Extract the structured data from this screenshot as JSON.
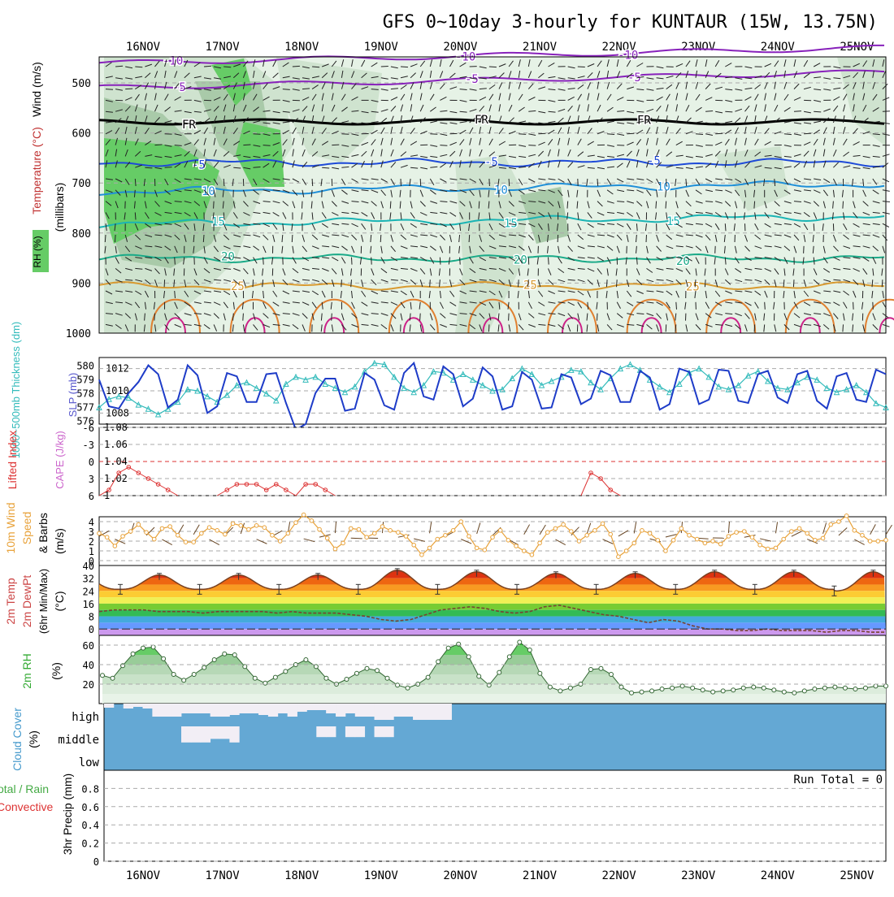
{
  "title": "GFS 0~10day 3-hourly for KUNTAUR (15W, 13.75N)",
  "dates": [
    "16NOV",
    "17NOV",
    "18NOV",
    "19NOV",
    "20NOV",
    "21NOV",
    "22NOV",
    "23NOV",
    "24NOV",
    "25NOV"
  ],
  "colors": {
    "rh_green": "#66cc66",
    "slp": "#1e3cc8",
    "thickness": "#33bbbb",
    "li": "#dd3333",
    "wind_speed": "#e8a23a",
    "temp_line": "#7a4020",
    "rh2m": "#55bb55",
    "cloud": "#64a8d4",
    "cloud_gap": "#f2eef5"
  },
  "panels": {
    "upper": {
      "ylabel_wind": "Wind (m/s)",
      "ylabel_temp": "Temperature (°C)",
      "ylabel_rh": "RH (%)",
      "ylabel_units": "(millibars)",
      "pressure_ticks": [
        "500",
        "600",
        "700",
        "800",
        "900",
        "1000"
      ],
      "isotherms": [
        {
          "label": "-10",
          "color": "#8822bb"
        },
        {
          "label": "-5",
          "color": "#8822bb"
        },
        {
          "label": "FR",
          "color": "#000000"
        },
        {
          "label": "-5",
          "color": "#1e4ad8"
        },
        {
          "label": "10",
          "color": "#1f8fd8"
        },
        {
          "label": "15",
          "color": "#1ab4b4"
        },
        {
          "label": "20",
          "color": "#1aaa88"
        },
        {
          "label": "25",
          "color": "#d89a30"
        }
      ]
    },
    "slp": {
      "ylabel_thickness": "1000~500mb Thickness (dm)",
      "ylabel_slp": "SLP (mb)",
      "ticks_thickness": [
        "580",
        "579",
        "578",
        "577",
        "576"
      ],
      "ticks_slp": [
        "1012",
        "1010",
        "1008"
      ]
    },
    "li": {
      "ylabel_li": "Lifted Index",
      "ylabel_cape": "CAPE (J/kg)",
      "ticks_li": [
        "-6",
        "-3",
        "0",
        "3",
        "6"
      ],
      "ticks_cape": [
        "1.08",
        "1.06",
        "1.04",
        "1.02",
        "1"
      ]
    },
    "wind10": {
      "ylabel_1": "10m Wind",
      "ylabel_2": "Speed",
      "ylabel_3": "& Barbs",
      "ylabel_units": "(m/s)",
      "ticks": [
        "4",
        "3",
        "2",
        "1",
        "0"
      ]
    },
    "temp2m": {
      "ylabel_1": "2m Temp",
      "ylabel_2": "2m DewPt",
      "ylabel_3": "(6hr Min/Max)",
      "ylabel_units": "(°C)",
      "ticks": [
        "40",
        "32",
        "24",
        "16",
        "8",
        "0"
      ]
    },
    "rh2m": {
      "ylabel": "2m RH",
      "ylabel_units": "(%)",
      "ticks": [
        "60",
        "40",
        "20"
      ]
    },
    "cloud": {
      "ylabel": "Cloud Cover",
      "ylabel_units": "(%)",
      "levels": [
        "high",
        "middle",
        "low"
      ]
    },
    "precip": {
      "ylabel_1": "Total / Rain",
      "ylabel_2": "Convective",
      "ylabel_3": "3hr Precip (mm)",
      "ticks": [
        "0.8",
        "0.6",
        "0.4",
        "0.2",
        "0"
      ],
      "run_total": "Run Total = 0"
    }
  },
  "chart_data": [
    {
      "type": "line",
      "title": "SLP (mb)",
      "x_unit": "3-hourly steps from 15NOV 12Z",
      "series": [
        {
          "name": "SLP (mb)",
          "values": [
            1011,
            1008.6,
            1008.4,
            1009.8,
            1010.8,
            1012.3,
            1011.5,
            1008.5,
            1009.2,
            1012.3,
            1011.4,
            1008.0,
            1008.6,
            1011.6,
            1011.3,
            1009.0,
            1009.0,
            1011.5,
            1011.6,
            1008.9,
            1006.5,
            1007.0,
            1009.8,
            1011.1,
            1011.1,
            1008.2,
            1008.4,
            1011.6,
            1011.0,
            1008.7,
            1008.3,
            1011.6,
            1012.5,
            1009.5,
            1009.2,
            1012.2,
            1011.5,
            1008.6,
            1009.3,
            1012.1,
            1011.3,
            1008.3,
            1008.6,
            1011.7,
            1011.0,
            1008.4,
            1008.5,
            1011.5,
            1011.2,
            1008.8,
            1009.3,
            1011.8,
            1011.4,
            1009.0,
            1009.0,
            1011.8,
            1011.2,
            1008.3,
            1008.8,
            1012.0,
            1011.7,
            1008.8,
            1009.2,
            1011.9,
            1011.8,
            1009.1,
            1008.9,
            1011.5,
            1011.8,
            1009.4,
            1008.9,
            1011.5,
            1011.8,
            1009.1,
            1008.4,
            1011.3,
            1011.6,
            1009.2,
            1009.0,
            1011.9,
            1011.5
          ]
        },
        {
          "name": "1000~500mb Thickness (dm)",
          "values": [
            577.0,
            577.6,
            577.8,
            577.7,
            577.2,
            576.9,
            576.5,
            576.9,
            577.4,
            578.3,
            578.2,
            577.8,
            577.4,
            577.9,
            578.6,
            578.8,
            578.4,
            578.0,
            577.5,
            578.7,
            579.2,
            579.0,
            579.2,
            578.7,
            578.4,
            578.1,
            578.5,
            579.6,
            580.2,
            580.1,
            579.2,
            578.4,
            578.1,
            578.6,
            579.6,
            579.5,
            579.0,
            579.4,
            579.0,
            578.6,
            578.2,
            578.3,
            579.1,
            579.8,
            579.4,
            578.6,
            578.9,
            579.2,
            579.7,
            579.6,
            578.8,
            578.3,
            579.1,
            579.8,
            580.1,
            579.7,
            579.0,
            578.5,
            578.1,
            578.7,
            579.5,
            579.8,
            579.2,
            578.5,
            578.3,
            578.6,
            579.3,
            579.6,
            578.9,
            578.4,
            578.3,
            578.8,
            579.2,
            579.0,
            578.4,
            578.1,
            578.3,
            578.6,
            578.1,
            577.3,
            577.0
          ]
        }
      ],
      "ylim_slp": [
        1007,
        1013
      ],
      "ylim_thickness": [
        575.8,
        580.6
      ]
    },
    {
      "type": "line",
      "title": "Lifted Index",
      "series": [
        {
          "name": "Lifted Index",
          "values": [
            6,
            5,
            2,
            1,
            2,
            3,
            4,
            5,
            6,
            6,
            6,
            6,
            6,
            5,
            4,
            4,
            4,
            5,
            4,
            5,
            6,
            4,
            4,
            5,
            6,
            6,
            6,
            6,
            6,
            6,
            6,
            6,
            6,
            6,
            6,
            6,
            6,
            6,
            6,
            6,
            6,
            6,
            6,
            6,
            6,
            6,
            6,
            6,
            6,
            6,
            2,
            3,
            5,
            6,
            6,
            6,
            6,
            6,
            6,
            6
          ]
        }
      ],
      "ylim": [
        -6,
        6
      ]
    },
    {
      "type": "line",
      "title": "10m Wind Speed (m/s)",
      "series": [
        {
          "name": "Speed",
          "values": [
            2.8,
            2.4,
            1.5,
            2.5,
            3.0,
            3.7,
            2.9,
            2.2,
            3.3,
            3.5,
            2.6,
            1.9,
            1.9,
            2.8,
            3.4,
            3.1,
            2.7,
            3.8,
            3.6,
            3.2,
            3.6,
            3.4,
            2.6,
            2.0,
            2.8,
            3.9,
            4.7,
            4.1,
            3.2,
            2.3,
            1.2,
            1.8,
            3.3,
            3.2,
            2.4,
            2.8,
            3.5,
            3.1,
            2.9,
            2.5,
            1.6,
            0.6,
            1.3,
            2.2,
            2.6,
            3.1,
            4.0,
            2.5,
            1.3,
            1.1,
            2.4,
            3.1,
            2.1,
            1.5,
            1.0,
            0.6,
            1.8,
            2.9,
            3.3,
            3.7,
            3.0,
            2.0,
            2.6,
            3.1,
            3.8,
            2.7,
            0.4,
            1.0,
            1.8,
            3.1,
            2.8,
            2.1,
            1.0,
            2.1,
            3.3,
            2.6,
            2.2,
            1.8,
            2.0,
            1.7,
            2.5,
            2.9,
            3.0,
            2.4,
            1.6,
            1.2,
            1.3,
            2.2,
            3.0,
            3.3,
            2.8,
            2.1,
            2.3,
            3.7,
            4.0,
            4.6,
            3.1,
            2.6,
            2.0,
            2.0,
            2.1
          ]
        }
      ],
      "ylim": [
        0,
        5
      ]
    },
    {
      "type": "area",
      "title": "2m Temp (°C)",
      "series": [
        {
          "name": "2m Temp",
          "daily_max": [
            34,
            34,
            34,
            37,
            36,
            35,
            35,
            36,
            36,
            36
          ],
          "daily_min": [
            25,
            25,
            25,
            25,
            25,
            25,
            25,
            25,
            25,
            24
          ]
        },
        {
          "name": "2m DewPt",
          "values": [
            11,
            12,
            12,
            12,
            11,
            11,
            11,
            10,
            11,
            11,
            11,
            11,
            10,
            11,
            10,
            10,
            10,
            9,
            8,
            6,
            5,
            6,
            9,
            12,
            13,
            14,
            13,
            11,
            10,
            11,
            14,
            15,
            13,
            11,
            9,
            8,
            6,
            4,
            6,
            5,
            2,
            0,
            0,
            -1,
            -1,
            0,
            -1,
            -1,
            -1,
            -2,
            -1,
            -1,
            -2,
            -2
          ]
        }
      ],
      "ylim": [
        -4,
        40
      ]
    },
    {
      "type": "area",
      "title": "2m RH (%)",
      "series": [
        {
          "name": "2m RH",
          "values": [
            29,
            26,
            39,
            51,
            57,
            58,
            46,
            30,
            24,
            30,
            37,
            45,
            51,
            50,
            38,
            26,
            21,
            27,
            33,
            40,
            45,
            38,
            26,
            20,
            25,
            31,
            36,
            34,
            26,
            19,
            16,
            20,
            27,
            43,
            57,
            61,
            48,
            28,
            19,
            32,
            48,
            63,
            55,
            31,
            17,
            13,
            16,
            20,
            35,
            36,
            30,
            17,
            11,
            12,
            13,
            15,
            16,
            18,
            16,
            14,
            12,
            13,
            14,
            16,
            17,
            16,
            14,
            12,
            11,
            13,
            15,
            16,
            17,
            16,
            15,
            16,
            18,
            18
          ]
        }
      ],
      "ylim": [
        0,
        70
      ]
    },
    {
      "type": "bar",
      "title": "Cloud Cover (%)",
      "series": [
        {
          "name": "high",
          "values": [
            75,
            100,
            70,
            80,
            70,
            20,
            20,
            20,
            40,
            40,
            40,
            20,
            20,
            30,
            40,
            40,
            30,
            20,
            40,
            20,
            50,
            60,
            60,
            40,
            20,
            40,
            20,
            20,
            0,
            0,
            20,
            20,
            0,
            0,
            0,
            0,
            100,
            100,
            100,
            100,
            100,
            100,
            100,
            100,
            100,
            100,
            100,
            100,
            100,
            100,
            100,
            100,
            100,
            100,
            100,
            100,
            100,
            100,
            100,
            100,
            100,
            100,
            100,
            100,
            100,
            100,
            100,
            100,
            100,
            100,
            100,
            100,
            100,
            100,
            100,
            100,
            100,
            100,
            100,
            100,
            100
          ]
        },
        {
          "name": "middle",
          "values": [
            100,
            100,
            100,
            100,
            100,
            100,
            100,
            100,
            10,
            10,
            10,
            30,
            30,
            10,
            100,
            100,
            100,
            100,
            100,
            100,
            100,
            100,
            40,
            40,
            100,
            40,
            40,
            100,
            40,
            40,
            100,
            100,
            100,
            100,
            100,
            100,
            100,
            100,
            100,
            100,
            100,
            100,
            100,
            100,
            100,
            100,
            100,
            100,
            100,
            100,
            100,
            100,
            100,
            100,
            100,
            100,
            100,
            100,
            100,
            100,
            100,
            100,
            100,
            100,
            100,
            100,
            100,
            100,
            100,
            100,
            100,
            100,
            100,
            100,
            100,
            100,
            100,
            100,
            100,
            100,
            100
          ]
        },
        {
          "name": "low",
          "values": [
            100,
            100,
            100,
            100,
            100,
            100,
            100,
            100,
            100,
            100,
            100,
            100,
            100,
            100,
            100,
            100,
            100,
            100,
            100,
            100,
            100,
            100,
            100,
            100,
            100,
            100,
            100,
            100,
            100,
            100,
            100,
            100,
            100,
            100,
            100,
            100,
            100,
            100,
            100,
            100,
            100,
            100,
            100,
            100,
            100,
            100,
            100,
            100,
            100,
            100,
            100,
            100,
            100,
            100,
            100,
            100,
            100,
            100,
            100,
            100,
            100,
            100,
            100,
            100,
            100,
            100,
            100,
            100,
            100,
            100,
            100,
            100,
            100,
            100,
            100,
            100,
            100,
            100,
            100,
            100,
            100
          ]
        }
      ],
      "ylim": [
        0,
        100
      ]
    },
    {
      "type": "bar",
      "title": "3hr Precip (mm)",
      "series": [
        {
          "name": "Total / Rain",
          "values": [
            0,
            0,
            0,
            0,
            0,
            0,
            0,
            0,
            0,
            0,
            0,
            0,
            0,
            0,
            0,
            0,
            0,
            0,
            0,
            0,
            0,
            0,
            0,
            0,
            0,
            0,
            0,
            0,
            0,
            0,
            0,
            0,
            0,
            0,
            0,
            0,
            0,
            0,
            0,
            0,
            0,
            0,
            0,
            0,
            0,
            0,
            0,
            0,
            0,
            0,
            0,
            0,
            0,
            0,
            0,
            0,
            0,
            0,
            0,
            0,
            0,
            0,
            0,
            0,
            0,
            0,
            0,
            0,
            0,
            0,
            0,
            0,
            0,
            0,
            0,
            0,
            0,
            0,
            0,
            0,
            0
          ]
        }
      ],
      "ylim": [
        0,
        1.0
      ]
    }
  ]
}
